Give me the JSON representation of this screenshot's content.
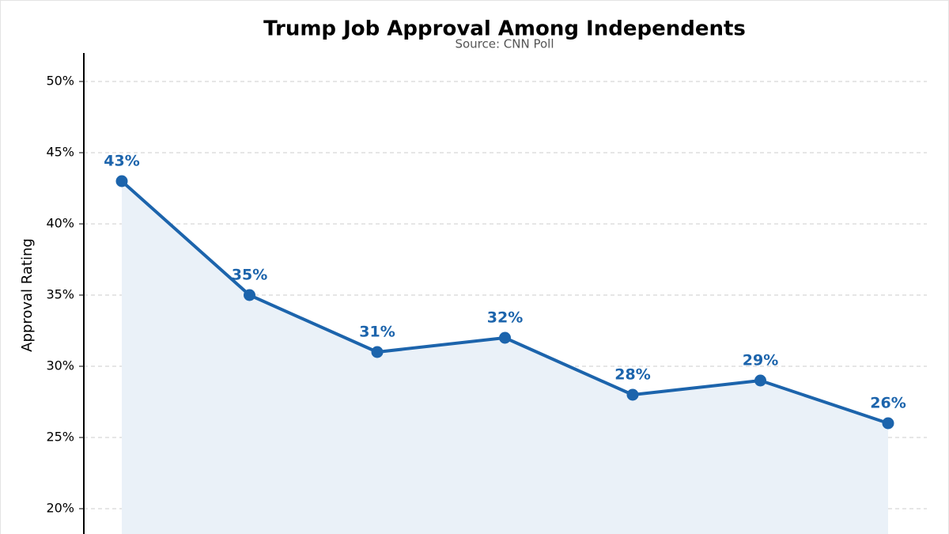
{
  "chart_data": {
    "type": "line",
    "title": "Trump Job Approval Among Independents",
    "subtitle": "Source: CNN Poll",
    "y_label": "Approval Rating",
    "categories": [
      null,
      null,
      null,
      null,
      null,
      null,
      null
    ],
    "series": [
      {
        "name": null,
        "color": "#1c64ac",
        "values": [
          43,
          35,
          31,
          32,
          28,
          29,
          26
        ],
        "value_labels": [
          "43%",
          "35%",
          "31%",
          "32%",
          "28%",
          "29%",
          "26%"
        ]
      }
    ],
    "area_fill": "#eaf1f8",
    "ylim": [
      18,
      52
    ],
    "yticks": [
      {
        "value": 20,
        "label": "20%"
      },
      {
        "value": 25,
        "label": "25%"
      },
      {
        "value": 30,
        "label": "30%"
      },
      {
        "value": 35,
        "label": "35%"
      },
      {
        "value": 40,
        "label": "40%"
      },
      {
        "value": 45,
        "label": "45%"
      },
      {
        "value": 50,
        "label": "50%"
      }
    ],
    "grid": true
  }
}
